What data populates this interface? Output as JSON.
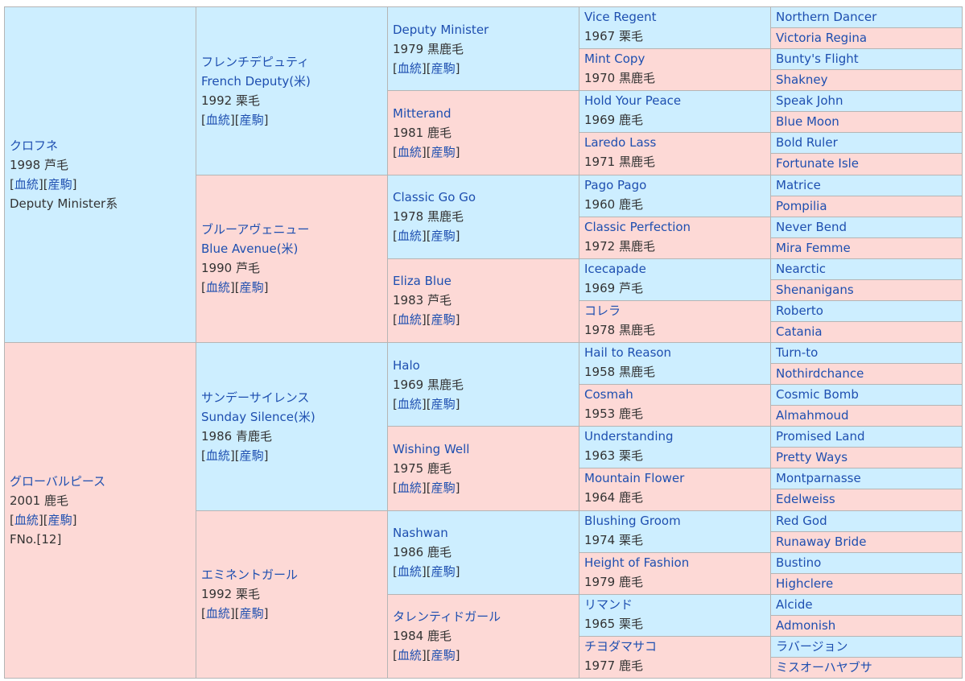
{
  "gen1": [
    {
      "name": "クロフネ",
      "year": "1998",
      "color": "芦毛",
      "bloodline_link": "血統",
      "progeny_link": "産駒",
      "extra": "Deputy Minister系",
      "sex": "sire"
    },
    {
      "name": "グローバルピース",
      "year": "2001",
      "color": "鹿毛",
      "bloodline_link": "血統",
      "progeny_link": "産駒",
      "extra": "FNo.[12]",
      "sex": "dam"
    }
  ],
  "gen2": [
    {
      "name": "フレンチデピュティ",
      "name_en": "French Deputy(米)",
      "year": "1992",
      "color": "栗毛",
      "bloodline_link": "血統",
      "progeny_link": "産駒",
      "sex": "sire"
    },
    {
      "name": "ブルーアヴェニュー",
      "name_en": "Blue Avenue(米)",
      "year": "1990",
      "color": "芦毛",
      "bloodline_link": "血統",
      "progeny_link": "産駒",
      "sex": "dam"
    },
    {
      "name": "サンデーサイレンス",
      "name_en": "Sunday Silence(米)",
      "year": "1986",
      "color": "青鹿毛",
      "bloodline_link": "血統",
      "progeny_link": "産駒",
      "sex": "sire"
    },
    {
      "name": "エミネントガール",
      "name_en": "",
      "year": "1992",
      "color": "栗毛",
      "bloodline_link": "血統",
      "progeny_link": "産駒",
      "sex": "dam"
    }
  ],
  "gen3": [
    {
      "name": "Deputy Minister",
      "year": "1979",
      "color": "黒鹿毛",
      "bloodline_link": "血統",
      "progeny_link": "産駒",
      "sex": "sire"
    },
    {
      "name": "Mitterand",
      "year": "1981",
      "color": "鹿毛",
      "bloodline_link": "血統",
      "progeny_link": "産駒",
      "sex": "dam"
    },
    {
      "name": "Classic Go Go",
      "year": "1978",
      "color": "黒鹿毛",
      "bloodline_link": "血統",
      "progeny_link": "産駒",
      "sex": "sire"
    },
    {
      "name": "Eliza Blue",
      "year": "1983",
      "color": "芦毛",
      "bloodline_link": "血統",
      "progeny_link": "産駒",
      "sex": "dam"
    },
    {
      "name": "Halo",
      "year": "1969",
      "color": "黒鹿毛",
      "bloodline_link": "血統",
      "progeny_link": "産駒",
      "sex": "sire"
    },
    {
      "name": "Wishing Well",
      "year": "1975",
      "color": "鹿毛",
      "bloodline_link": "血統",
      "progeny_link": "産駒",
      "sex": "dam"
    },
    {
      "name": "Nashwan",
      "year": "1986",
      "color": "鹿毛",
      "bloodline_link": "血統",
      "progeny_link": "産駒",
      "sex": "sire"
    },
    {
      "name": "タレンティドガール",
      "year": "1984",
      "color": "鹿毛",
      "bloodline_link": "血統",
      "progeny_link": "産駒",
      "sex": "dam"
    }
  ],
  "gen4": [
    {
      "name": "Vice Regent",
      "year": "1967",
      "color": "栗毛",
      "sex": "sire"
    },
    {
      "name": "Mint Copy",
      "year": "1970",
      "color": "黒鹿毛",
      "sex": "dam"
    },
    {
      "name": "Hold Your Peace",
      "year": "1969",
      "color": "鹿毛",
      "sex": "sire"
    },
    {
      "name": "Laredo Lass",
      "year": "1971",
      "color": "黒鹿毛",
      "sex": "dam"
    },
    {
      "name": "Pago Pago",
      "year": "1960",
      "color": "鹿毛",
      "sex": "sire"
    },
    {
      "name": "Classic Perfection",
      "year": "1972",
      "color": "黒鹿毛",
      "sex": "dam"
    },
    {
      "name": "Icecapade",
      "year": "1969",
      "color": "芦毛",
      "sex": "sire"
    },
    {
      "name": "コレラ",
      "year": "1978",
      "color": "黒鹿毛",
      "sex": "dam"
    },
    {
      "name": "Hail to Reason",
      "year": "1958",
      "color": "黒鹿毛",
      "sex": "sire"
    },
    {
      "name": "Cosmah",
      "year": "1953",
      "color": "鹿毛",
      "sex": "dam"
    },
    {
      "name": "Understanding",
      "year": "1963",
      "color": "栗毛",
      "sex": "sire"
    },
    {
      "name": "Mountain Flower",
      "year": "1964",
      "color": "鹿毛",
      "sex": "dam"
    },
    {
      "name": "Blushing Groom",
      "year": "1974",
      "color": "栗毛",
      "sex": "sire"
    },
    {
      "name": "Height of Fashion",
      "year": "1979",
      "color": "鹿毛",
      "sex": "dam"
    },
    {
      "name": "リマンド",
      "year": "1965",
      "color": "栗毛",
      "sex": "sire"
    },
    {
      "name": "チヨダマサコ",
      "year": "1977",
      "color": "鹿毛",
      "sex": "dam"
    }
  ],
  "gen5": [
    {
      "name": "Northern Dancer",
      "sex": "sire"
    },
    {
      "name": "Victoria Regina",
      "sex": "dam"
    },
    {
      "name": "Bunty's Flight",
      "sex": "sire"
    },
    {
      "name": "Shakney",
      "sex": "dam"
    },
    {
      "name": "Speak John",
      "sex": "sire"
    },
    {
      "name": "Blue Moon",
      "sex": "dam"
    },
    {
      "name": "Bold Ruler",
      "sex": "sire"
    },
    {
      "name": "Fortunate Isle",
      "sex": "dam"
    },
    {
      "name": "Matrice",
      "sex": "sire"
    },
    {
      "name": "Pompilia",
      "sex": "dam"
    },
    {
      "name": "Never Bend",
      "sex": "sire"
    },
    {
      "name": "Mira Femme",
      "sex": "dam"
    },
    {
      "name": "Nearctic",
      "sex": "sire"
    },
    {
      "name": "Shenanigans",
      "sex": "dam"
    },
    {
      "name": "Roberto",
      "sex": "sire"
    },
    {
      "name": "Catania",
      "sex": "dam"
    },
    {
      "name": "Turn-to",
      "sex": "sire"
    },
    {
      "name": "Nothirdchance",
      "sex": "dam"
    },
    {
      "name": "Cosmic Bomb",
      "sex": "sire"
    },
    {
      "name": "Almahmoud",
      "sex": "dam"
    },
    {
      "name": "Promised Land",
      "sex": "sire"
    },
    {
      "name": "Pretty Ways",
      "sex": "dam"
    },
    {
      "name": "Montparnasse",
      "sex": "sire"
    },
    {
      "name": "Edelweiss",
      "sex": "dam"
    },
    {
      "name": "Red God",
      "sex": "sire"
    },
    {
      "name": "Runaway Bride",
      "sex": "dam"
    },
    {
      "name": "Bustino",
      "sex": "sire"
    },
    {
      "name": "Highclere",
      "sex": "dam"
    },
    {
      "name": "Alcide",
      "sex": "sire"
    },
    {
      "name": "Admonish",
      "sex": "dam"
    },
    {
      "name": "ラバージョン",
      "sex": "sire"
    },
    {
      "name": "ミスオーハヤブサ",
      "sex": "dam"
    }
  ],
  "colors": {
    "sire_bg": "#cdeeff",
    "dam_bg": "#fdd9d6",
    "link": "#1e4fb0",
    "text": "#333333",
    "border": "#b5b5b5"
  }
}
